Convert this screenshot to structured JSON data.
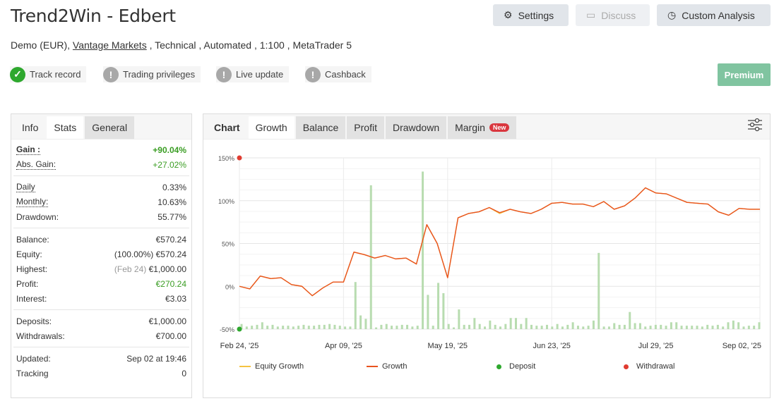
{
  "header": {
    "title": "Trend2Win - Edbert",
    "sub_prefix": "Demo (EUR),",
    "broker": "Vantage Markets",
    "sub_suffix": ", Technical , Automated , 1:100 , MetaTrader 5"
  },
  "buttons": {
    "settings": "Settings",
    "discuss": "Discuss",
    "custom_analysis": "Custom Analysis",
    "premium": "Premium"
  },
  "badges": [
    {
      "label": "Track record",
      "status": "ok"
    },
    {
      "label": "Trading privileges",
      "status": "warn"
    },
    {
      "label": "Live update",
      "status": "warn"
    },
    {
      "label": "Cashback",
      "status": "warn"
    }
  ],
  "stats_tabs": [
    "Info",
    "Stats",
    "General"
  ],
  "stats": {
    "gain": {
      "label": "Gain :",
      "value": "+90.04%"
    },
    "abs_gain": {
      "label": "Abs. Gain:",
      "value": "+27.02%"
    },
    "daily": {
      "label": "Daily",
      "value": "0.33%"
    },
    "monthly": {
      "label": "Monthly:",
      "value": "10.63%"
    },
    "drawdown": {
      "label": "Drawdown:",
      "value": "55.77%"
    },
    "balance": {
      "label": "Balance:",
      "value": "€570.24"
    },
    "equity": {
      "label": "Equity:",
      "note": "(100.00%)",
      "value": "€570.24"
    },
    "highest": {
      "label": "Highest:",
      "note": "(Feb 24)",
      "value": "€1,000.00"
    },
    "profit": {
      "label": "Profit:",
      "value": "€270.24"
    },
    "interest": {
      "label": "Interest:",
      "value": "€3.03"
    },
    "deposits": {
      "label": "Deposits:",
      "value": "€1,000.00"
    },
    "withdrawals": {
      "label": "Withdrawals:",
      "value": "€700.00"
    },
    "updated": {
      "label": "Updated:",
      "value": "Sep 02 at 19:46"
    },
    "tracking": {
      "label": "Tracking",
      "value": "0"
    }
  },
  "chart_tabs": {
    "label": "Chart",
    "items": [
      "Growth",
      "Balance",
      "Profit",
      "Drawdown",
      "Margin"
    ],
    "new_badge": "New"
  },
  "colors": {
    "growth": "#e8531f",
    "equity_growth": "#f5c342",
    "deposit": "#2ea82e",
    "withdrawal": "#e03c31",
    "volume": "#b8dcb0",
    "green": "#3a9d23",
    "premium": "#80c4a0"
  },
  "chart_data": {
    "type": "line",
    "y_ticks": [
      "150%",
      "100%",
      "50%",
      "0%",
      "-50%"
    ],
    "ylim": [
      -50,
      150
    ],
    "x_ticks": [
      "Feb 24, '25",
      "Apr 09, '25",
      "May 19, '25",
      "Jun 23, '25",
      "Jul 29, '25",
      "Sep 02, '25"
    ],
    "grid": true,
    "legend_position": "bottom",
    "series": [
      {
        "name": "Equity Growth",
        "values": [
          0,
          -3,
          12,
          9,
          10,
          2,
          0,
          -11,
          -2,
          5,
          5,
          40,
          37,
          33,
          36,
          32,
          33,
          26,
          72,
          50,
          10,
          80,
          85,
          87,
          92,
          85,
          90,
          87,
          85,
          90,
          97,
          98,
          96,
          96,
          93,
          99,
          90,
          94,
          103,
          115,
          109,
          108,
          103,
          98,
          97,
          96,
          87,
          83,
          91,
          90,
          90
        ]
      },
      {
        "name": "Growth",
        "values": [
          0,
          -3,
          12,
          9,
          10,
          2,
          0,
          -11,
          -2,
          5,
          5,
          40,
          37,
          33,
          36,
          32,
          33,
          26,
          72,
          50,
          10,
          80,
          85,
          87,
          92,
          86,
          90,
          87,
          85,
          90,
          97,
          98,
          96,
          96,
          93,
          99,
          90,
          94,
          103,
          115,
          109,
          108,
          103,
          98,
          97,
          96,
          87,
          83,
          91,
          90,
          90
        ]
      }
    ],
    "volume_bars": [
      -44,
      -47,
      -46,
      -45,
      -42,
      -46,
      -45,
      -47,
      -46,
      -46,
      -47,
      -46,
      -45,
      -46,
      -46,
      -45,
      -45,
      -44,
      -45,
      -46,
      -47,
      -47,
      5,
      -34,
      -38,
      118,
      -48,
      -45,
      -44,
      -46,
      -46,
      -45,
      -45,
      -47,
      -46,
      134,
      -10,
      -46,
      4,
      -8,
      -44,
      -48,
      -27,
      -45,
      -45,
      -37,
      -44,
      -47,
      -40,
      -45,
      -47,
      -44,
      -37,
      -37,
      -44,
      -37,
      -45,
      -46,
      -46,
      -45,
      -47,
      -44,
      -47,
      -45,
      -42,
      -46,
      -47,
      -46,
      -40,
      39,
      -47,
      -47,
      -43,
      -45,
      -45,
      -30,
      -43,
      -43,
      -47,
      -46,
      -45,
      -45,
      -46,
      -42,
      -42,
      -46,
      -46,
      -46,
      -46,
      -47,
      -45,
      -46,
      -45,
      -47,
      -42,
      -40,
      -42,
      -47,
      -46,
      -46,
      -42
    ],
    "legend": [
      "Equity Growth",
      "Growth",
      "Deposit",
      "Withdrawal"
    ],
    "markers": {
      "deposit": {
        "x_tick": "Feb 24, '25",
        "value": -50
      },
      "withdrawal": {
        "x_tick": "Feb 24, '25",
        "value": 150
      }
    }
  }
}
